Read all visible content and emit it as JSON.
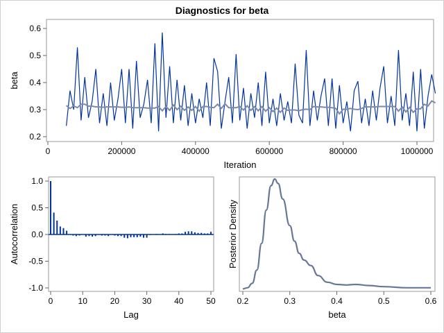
{
  "title": "Diagnostics for beta",
  "colors": {
    "trace": "#0033a0",
    "trace_light": "#6f8fd0",
    "mean_line": "#7a8aa8",
    "acf_bar": "#0033a0",
    "density": "#667799",
    "frame": "#999999"
  },
  "chart_data": [
    {
      "type": "line",
      "name": "trace",
      "xlabel": "Iteration",
      "ylabel": "beta",
      "xlim": [
        0,
        1050000
      ],
      "ylim": [
        0.2,
        0.6
      ],
      "xticks": [
        "0",
        "200000",
        "400000",
        "600000",
        "800000",
        "1000000"
      ],
      "yticks": [
        "0.2",
        "0.3",
        "0.4",
        "0.5",
        "0.6"
      ],
      "x_start": 50000,
      "x_step": 10000,
      "values": [
        0.24,
        0.37,
        0.3,
        0.53,
        0.26,
        0.42,
        0.27,
        0.33,
        0.45,
        0.25,
        0.36,
        0.24,
        0.4,
        0.26,
        0.34,
        0.45,
        0.25,
        0.45,
        0.23,
        0.48,
        0.27,
        0.32,
        0.41,
        0.25,
        0.545,
        0.22,
        0.585,
        0.27,
        0.46,
        0.25,
        0.41,
        0.26,
        0.39,
        0.24,
        0.36,
        0.25,
        0.34,
        0.27,
        0.4,
        0.24,
        0.49,
        0.44,
        0.23,
        0.33,
        0.42,
        0.25,
        0.505,
        0.26,
        0.38,
        0.23,
        0.36,
        0.27,
        0.4,
        0.24,
        0.44,
        0.25,
        0.34,
        0.24,
        0.36,
        0.26,
        0.33,
        0.25,
        0.47,
        0.28,
        0.25,
        0.52,
        0.24,
        0.37,
        0.26,
        0.35,
        0.415,
        0.24,
        0.415,
        0.23,
        0.39,
        0.25,
        0.33,
        0.22,
        0.37,
        0.405,
        0.25,
        0.34,
        0.24,
        0.37,
        0.26,
        0.38,
        0.46,
        0.25,
        0.35,
        0.24,
        0.52,
        0.26,
        0.36,
        0.24,
        0.44,
        0.22,
        0.45,
        0.23,
        0.35,
        0.43,
        0.36
      ],
      "grid": false
    },
    {
      "type": "bar",
      "name": "autocorrelation",
      "xlabel": "Lag",
      "ylabel": "Autocorrelation",
      "xlim": [
        0,
        51
      ],
      "ylim": [
        -1.0,
        1.0
      ],
      "xticks": [
        "0",
        "10",
        "20",
        "30",
        "40",
        "50"
      ],
      "yticks": [
        "-1.0",
        "-0.5",
        "0.0",
        "0.5",
        "1.0"
      ],
      "values": [
        1.0,
        0.41,
        0.26,
        0.15,
        0.12,
        0.07,
        0.0,
        -0.02,
        -0.03,
        -0.02,
        0.0,
        -0.04,
        -0.03,
        -0.04,
        -0.03,
        0.0,
        -0.02,
        -0.02,
        -0.03,
        0.0,
        -0.02,
        -0.03,
        -0.03,
        -0.06,
        -0.07,
        -0.05,
        -0.05,
        -0.05,
        -0.04,
        -0.06,
        -0.06,
        -0.01,
        0.0,
        0.01,
        0.0,
        0.02,
        0.01,
        0.01,
        0.0,
        0.01,
        0.02,
        0.02,
        0.05,
        0.06,
        0.06,
        0.04,
        0.03,
        0.03,
        0.02,
        0.02,
        0.05
      ],
      "grid": false
    },
    {
      "type": "line",
      "name": "density",
      "xlabel": "beta",
      "ylabel": "Posterior Density",
      "xlim": [
        0.19,
        0.61
      ],
      "xticks": [
        "0.2",
        "0.3",
        "0.4",
        "0.5",
        "0.6"
      ],
      "x": [
        0.2,
        0.21,
        0.22,
        0.23,
        0.24,
        0.25,
        0.26,
        0.268,
        0.275,
        0.285,
        0.3,
        0.31,
        0.32,
        0.33,
        0.345,
        0.36,
        0.38,
        0.4,
        0.42,
        0.44,
        0.47,
        0.5,
        0.55,
        0.6
      ],
      "y": [
        0.01,
        0.02,
        0.06,
        0.18,
        0.42,
        0.72,
        0.94,
        1.0,
        0.96,
        0.82,
        0.58,
        0.44,
        0.33,
        0.27,
        0.22,
        0.13,
        0.07,
        0.05,
        0.045,
        0.05,
        0.04,
        0.03,
        0.02,
        0.02
      ],
      "grid": false
    }
  ]
}
